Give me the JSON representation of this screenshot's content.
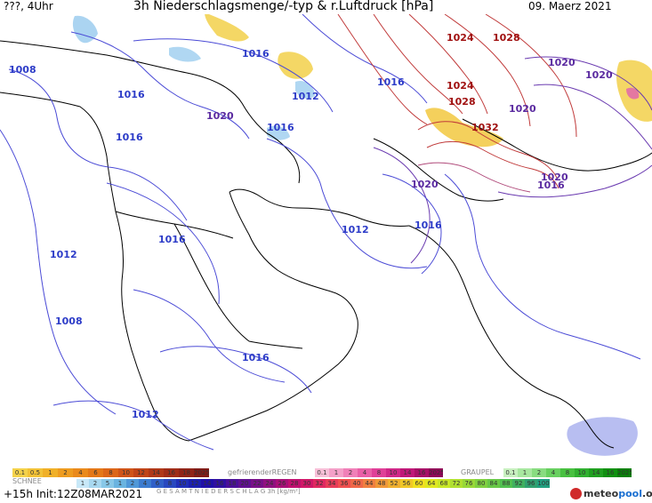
{
  "header": {
    "left": "???, 4Uhr",
    "title": "3h Niederschlagsmenge/-typ & r.Luftdruck [hPa]",
    "date": "09. Maerz 2021"
  },
  "isobars": [
    {
      "text": "1008",
      "color": "#2d3cc8"
    },
    {
      "text": "1016",
      "color": "#2d3cc8"
    },
    {
      "text": "1016",
      "color": "#2d3cc8"
    },
    {
      "text": "1012",
      "color": "#2d3cc8"
    },
    {
      "text": "1016",
      "color": "#2d3cc8"
    },
    {
      "text": "1020",
      "color": "#5a2aa0"
    },
    {
      "text": "1016",
      "color": "#2d3cc8"
    },
    {
      "text": "1016",
      "color": "#2d3cc8"
    },
    {
      "text": "1012",
      "color": "#2d3cc8"
    },
    {
      "text": "1016",
      "color": "#2d3cc8"
    },
    {
      "text": "1016",
      "color": "#2d3cc8"
    },
    {
      "text": "1012",
      "color": "#2d3cc8"
    },
    {
      "text": "1008",
      "color": "#2d3cc8"
    },
    {
      "text": "1016",
      "color": "#2d3cc8"
    },
    {
      "text": "1012",
      "color": "#2d3cc8"
    },
    {
      "text": "1024",
      "color": "#a01010"
    },
    {
      "text": "1028",
      "color": "#a01010"
    },
    {
      "text": "1024",
      "color": "#a01010"
    },
    {
      "text": "1028",
      "color": "#a01010"
    },
    {
      "text": "1032",
      "color": "#a01010"
    },
    {
      "text": "1020",
      "color": "#5a2aa0"
    },
    {
      "text": "1020",
      "color": "#5a2aa0"
    },
    {
      "text": "1020",
      "color": "#5a2aa0"
    },
    {
      "text": "1020",
      "color": "#5a2aa0"
    },
    {
      "text": "1020",
      "color": "#5a2aa0"
    },
    {
      "text": "1016",
      "color": "#5a2aa0"
    }
  ],
  "legend": {
    "rain_values": [
      "0.1",
      "0.5",
      "1",
      "2",
      "4",
      "6",
      "8",
      "10",
      "12",
      "14",
      "16",
      "18",
      "2025+"
    ],
    "freezing_rain_label": "gefrierenderREGEN",
    "freezing_rain_values": [
      "0.1",
      "1",
      "2",
      "4",
      "8",
      "10",
      "14",
      "16",
      "2025+"
    ],
    "graupel_label": "GRAUPEL",
    "graupel_values": [
      "0.1",
      "1",
      "2",
      "4",
      "8",
      "10",
      "14",
      "16",
      "2025+"
    ],
    "snow_label": "SCHNEE",
    "total_values": [
      "1",
      "2",
      "5",
      "1",
      "2",
      "4",
      "6",
      "8",
      "10",
      "12",
      "14",
      "16",
      "18",
      "20",
      "22",
      "24",
      "26",
      "28",
      "30",
      "32",
      "34",
      "36",
      "40",
      "44",
      "48",
      "52",
      "56",
      "60",
      "64",
      "68",
      "72",
      "76",
      "80",
      "84",
      "88",
      "92",
      "96",
      "100"
    ],
    "total_label": "G E S A M T N I E D E R S C H L A G   3h   [kg/m²]"
  },
  "footer": {
    "init": "+15h Init:12Z08MAR2021",
    "brand_pre": "meteo",
    "brand_mid": "pool",
    "brand_post": ".org"
  },
  "colors": {
    "rain_scale": [
      "#f4d24a",
      "#f2c238",
      "#f0b028",
      "#ee9c20",
      "#ea8a1c",
      "#e47818",
      "#dc6618",
      "#d05418",
      "#c04418",
      "#b03818",
      "#a02c18",
      "#902418",
      "#801c18"
    ],
    "freezing_scale": [
      "#f8c0d8",
      "#f4a0c8",
      "#f080b8",
      "#ea60a8",
      "#e04098",
      "#d02888",
      "#c01878",
      "#a81068",
      "#900858"
    ],
    "graupel_scale": [
      "#c8f0c0",
      "#a8e8a0",
      "#88dc80",
      "#68d060",
      "#48c040",
      "#30b030",
      "#20a020",
      "#109010",
      "#088008"
    ],
    "total_scale": [
      "#c8e8f8",
      "#a8d8f0",
      "#88c8e8",
      "#6ab4e0",
      "#5098d8",
      "#3c7cd0",
      "#3060c8",
      "#2848c0",
      "#2030b8",
      "#1c20b0",
      "#2010a8",
      "#3010a0",
      "#4a1098",
      "#601090",
      "#781088",
      "#901080",
      "#a81078",
      "#c01070",
      "#d01868",
      "#e02860",
      "#e83c58",
      "#f05050",
      "#f06848",
      "#f08040",
      "#f09838",
      "#f0b030",
      "#f0c828",
      "#f0e020",
      "#e0e820",
      "#c8e828",
      "#b0e030",
      "#98d838",
      "#80d040",
      "#68c848",
      "#50c050",
      "#40b060",
      "#30a070",
      "#20a080"
    ]
  }
}
